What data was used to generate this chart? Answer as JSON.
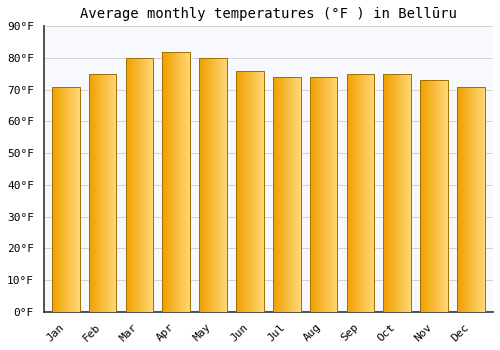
{
  "title": "Average monthly temperatures (°F ) in Bellūru",
  "months": [
    "Jan",
    "Feb",
    "Mar",
    "Apr",
    "May",
    "Jun",
    "Jul",
    "Aug",
    "Sep",
    "Oct",
    "Nov",
    "Dec"
  ],
  "values": [
    71,
    75,
    80,
    82,
    80,
    76,
    74,
    74,
    75,
    75,
    73,
    71
  ],
  "bar_color_left": "#FFAA00",
  "bar_color_right": "#FFD080",
  "bar_color_main": "#FFB930",
  "bar_edge_color": "#AA8800",
  "background_color": "#FFFFFF",
  "plot_bg_color": "#F8F8FF",
  "grid_color": "#CCCCCC",
  "ylim": [
    0,
    90
  ],
  "yticks": [
    0,
    10,
    20,
    30,
    40,
    50,
    60,
    70,
    80,
    90
  ],
  "ytick_labels": [
    "0°F",
    "10°F",
    "20°F",
    "30°F",
    "40°F",
    "50°F",
    "60°F",
    "70°F",
    "80°F",
    "90°F"
  ],
  "title_fontsize": 10,
  "tick_fontsize": 8,
  "font_family": "monospace"
}
